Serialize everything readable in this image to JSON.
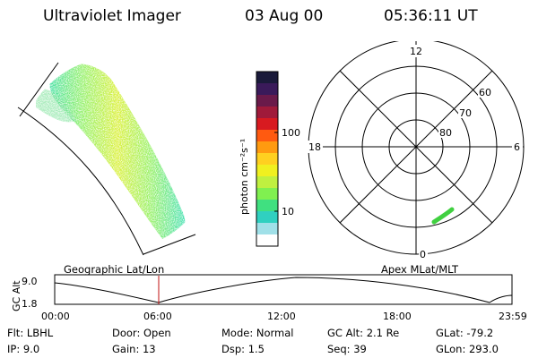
{
  "header": {
    "instrument": "Ultraviolet Imager",
    "date": "03 Aug 00",
    "time": "05:36:11 UT"
  },
  "colorbar": {
    "unit_label": "photon cm⁻²s⁻¹",
    "ticks": [
      "100",
      "10"
    ],
    "colors": [
      "#1a1a3a",
      "#3a1a5a",
      "#6a1a4a",
      "#a01a3a",
      "#d81a20",
      "#ff5a10",
      "#ff9a10",
      "#ffd020",
      "#f0f020",
      "#c0f040",
      "#80f050",
      "#40e080",
      "#30d0c0",
      "#a0e0e8",
      "#ffffff"
    ]
  },
  "polar_plot": {
    "mlt_labels": [
      "12",
      "18",
      "6",
      "0"
    ],
    "lat_labels": [
      "60",
      "70",
      "80"
    ]
  },
  "panel_labels": {
    "left": "Geographic Lat/Lon",
    "right": "Apex MLat/MLT"
  },
  "timeline": {
    "y_title": "GC Alt",
    "y_ticks": [
      "9.0",
      "1.8"
    ],
    "x_ticks": [
      "00:00",
      "06:00",
      "12:00",
      "18:00",
      "23:59"
    ],
    "marker_color": "#c01010"
  },
  "footer": {
    "row1": [
      {
        "key": "Flt:",
        "val": "LBHL"
      },
      {
        "key": "Door:",
        "val": "Open"
      },
      {
        "key": "Mode:",
        "val": "Normal"
      },
      {
        "key": "GC Alt:",
        "val": "2.1 Re"
      },
      {
        "key": "GLat:",
        "val": "-79.2"
      }
    ],
    "row2": [
      {
        "key": "IP:",
        "val": "9.0"
      },
      {
        "key": "Gain:",
        "val": "13"
      },
      {
        "key": "Dsp:",
        "val": "1.5"
      },
      {
        "key": "Seq:",
        "val": "39"
      },
      {
        "key": "GLon:",
        "val": "293.0"
      }
    ]
  }
}
